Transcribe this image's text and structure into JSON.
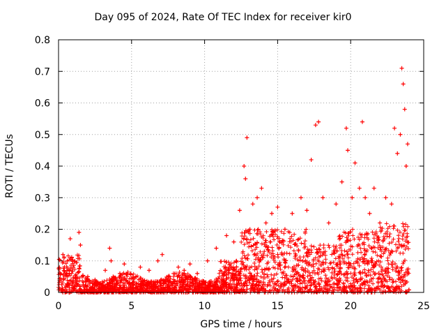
{
  "chart_data": {
    "type": "scatter",
    "title": "Day 095 of 2024, Rate Of TEC Index for receiver kir0",
    "xlabel": "GPS time / hours",
    "ylabel": "ROTI / TECUs",
    "xlim": [
      0,
      25
    ],
    "ylim": [
      0,
      0.8
    ],
    "xticks": [
      0,
      5,
      10,
      15,
      20,
      25
    ],
    "yticks": [
      0,
      0.1,
      0.2,
      0.3,
      0.4,
      0.5,
      0.6,
      0.7,
      0.8
    ],
    "grid": true,
    "marker": "+",
    "series_color": "#ff0000",
    "series": [
      {
        "name": "ROTI",
        "x": [
          0.1,
          0.3,
          0.6,
          0.8,
          0.9,
          1.0,
          1.4,
          1.5,
          2.0,
          2.5,
          3.2,
          3.5,
          3.6,
          4.2,
          4.5,
          5.3,
          5.6,
          6.2,
          6.8,
          7.1,
          7.5,
          8.2,
          8.6,
          9.0,
          9.5,
          10.2,
          10.8,
          11.5,
          12.0,
          12.4,
          12.7,
          12.8,
          12.9,
          13.1,
          13.3,
          13.6,
          13.9,
          14.2,
          14.6,
          15.0,
          15.5,
          16.0,
          16.6,
          17.0,
          17.3,
          17.6,
          17.8,
          18.1,
          18.5,
          19.0,
          19.4,
          19.7,
          19.8,
          20.1,
          20.3,
          20.6,
          20.8,
          21.0,
          21.3,
          21.6,
          22.0,
          22.4,
          22.8,
          23.0,
          23.2,
          23.4,
          23.5,
          23.6,
          23.7,
          23.8,
          23.9
        ],
        "y": [
          0.06,
          0.12,
          0.1,
          0.17,
          0.11,
          0.08,
          0.19,
          0.15,
          0.05,
          0.04,
          0.07,
          0.14,
          0.1,
          0.06,
          0.09,
          0.05,
          0.08,
          0.07,
          0.1,
          0.12,
          0.05,
          0.08,
          0.07,
          0.09,
          0.06,
          0.1,
          0.14,
          0.18,
          0.16,
          0.26,
          0.4,
          0.36,
          0.49,
          0.2,
          0.28,
          0.3,
          0.33,
          0.22,
          0.25,
          0.27,
          0.2,
          0.25,
          0.3,
          0.26,
          0.42,
          0.53,
          0.54,
          0.3,
          0.22,
          0.28,
          0.35,
          0.52,
          0.45,
          0.3,
          0.41,
          0.33,
          0.54,
          0.3,
          0.25,
          0.33,
          0.22,
          0.3,
          0.28,
          0.52,
          0.44,
          0.5,
          0.71,
          0.66,
          0.58,
          0.4,
          0.47
        ]
      }
    ]
  }
}
